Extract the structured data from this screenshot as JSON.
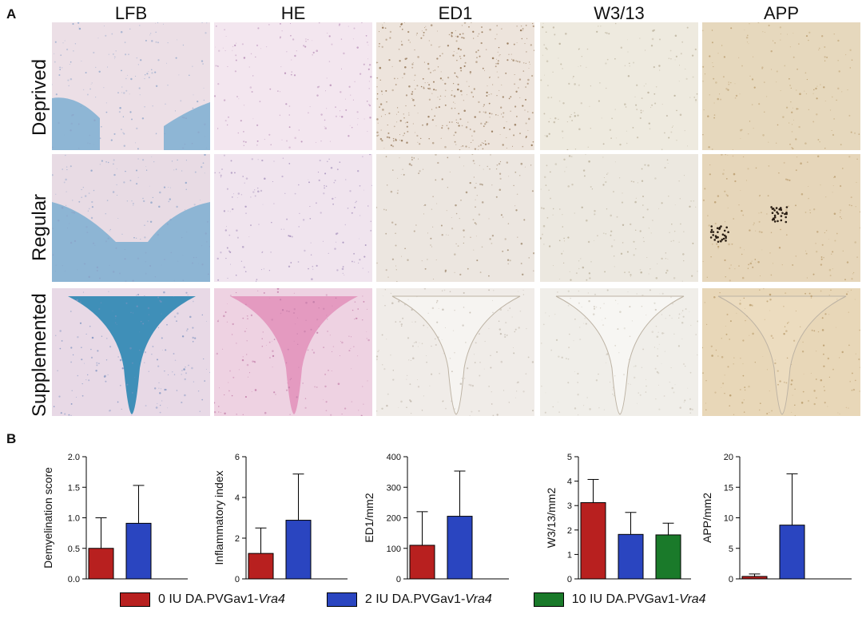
{
  "panel_a": {
    "label": "A",
    "columns": [
      "LFB",
      "HE",
      "ED1",
      "W3/13",
      "APP"
    ],
    "rows": [
      "Deprived",
      "Regular",
      "Supplemented"
    ]
  },
  "panel_b": {
    "label": "B"
  },
  "colors": {
    "group_0": "#b8201f",
    "group_2": "#2a45c0",
    "group_10": "#1a7a2a"
  },
  "legend": [
    {
      "prefix": "0 IU DA.PVGav1-",
      "gene": "Vra4",
      "color_key": "group_0"
    },
    {
      "prefix": "2 IU DA.PVGav1-",
      "gene": "Vra4",
      "color_key": "group_2"
    },
    {
      "prefix": "10 IU DA.PVGav1-",
      "gene": "Vra4",
      "color_key": "group_10"
    }
  ],
  "chart_data": [
    {
      "type": "bar",
      "ylabel": "Demyelination score",
      "ylim": [
        0,
        2.0
      ],
      "yticks": [
        "0.0",
        "0.5",
        "1.0",
        "1.5",
        "2.0"
      ],
      "series": [
        {
          "color_key": "group_0",
          "value": 0.5,
          "error": 0.5
        },
        {
          "color_key": "group_2",
          "value": 0.91,
          "error": 0.62
        }
      ]
    },
    {
      "type": "bar",
      "ylabel": "Inflammatory index",
      "ylim": [
        0,
        6
      ],
      "yticks": [
        "0",
        "2",
        "4",
        "6"
      ],
      "series": [
        {
          "color_key": "group_0",
          "value": 1.25,
          "error": 1.25
        },
        {
          "color_key": "group_2",
          "value": 2.88,
          "error": 2.27
        }
      ]
    },
    {
      "type": "bar",
      "ylabel": "ED1/mm2",
      "ylim": [
        0,
        400
      ],
      "yticks": [
        "0",
        "100",
        "200",
        "300",
        "400"
      ],
      "series": [
        {
          "color_key": "group_0",
          "value": 110,
          "error": 110
        },
        {
          "color_key": "group_2",
          "value": 205,
          "error": 148
        }
      ]
    },
    {
      "type": "bar",
      "ylabel": "W3/13/mm2",
      "ylim": [
        0,
        5
      ],
      "yticks": [
        "0",
        "1",
        "2",
        "3",
        "4",
        "5"
      ],
      "series": [
        {
          "color_key": "group_0",
          "value": 3.12,
          "error": 0.95
        },
        {
          "color_key": "group_2",
          "value": 1.82,
          "error": 0.9
        },
        {
          "color_key": "group_10",
          "value": 1.8,
          "error": 0.48
        }
      ]
    },
    {
      "type": "bar",
      "ylabel": "APP/mm2",
      "ylim": [
        0,
        20
      ],
      "yticks": [
        "0",
        "5",
        "10",
        "15",
        "20"
      ],
      "series": [
        {
          "color_key": "group_0",
          "value": 0.4,
          "error": 0.4
        },
        {
          "color_key": "group_2",
          "value": 8.8,
          "error": 8.4
        }
      ]
    }
  ]
}
